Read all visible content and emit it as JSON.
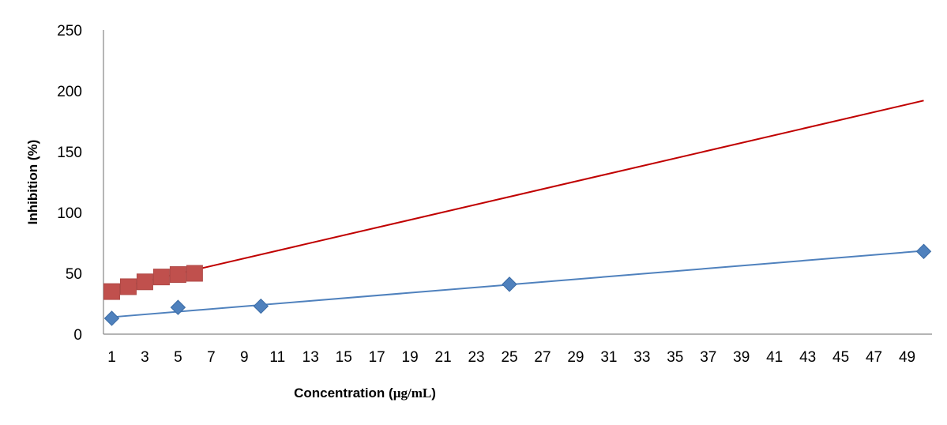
{
  "chart_data": {
    "type": "scatter",
    "title": "",
    "ylabel": "Inhibition (%)",
    "xlabel_prefix": "Concentration (",
    "xlabel_unit": "µg/mL",
    "xlabel_suffix": ")",
    "ylim": [
      0,
      250
    ],
    "yticks": [
      0,
      50,
      100,
      150,
      200,
      250
    ],
    "xlim": [
      0.5,
      50.5
    ],
    "xticks": [
      1,
      3,
      5,
      7,
      9,
      11,
      13,
      15,
      17,
      19,
      21,
      23,
      25,
      27,
      29,
      31,
      33,
      35,
      37,
      39,
      41,
      43,
      45,
      47,
      49
    ],
    "grid": false,
    "legend": "none",
    "series": [
      {
        "marker": "diamond",
        "color": "#4F81BD",
        "line_color": "#4F81BD",
        "points": [
          [
            1,
            13
          ],
          [
            5,
            22
          ],
          [
            10,
            23
          ],
          [
            25,
            41
          ],
          [
            50,
            68
          ]
        ],
        "trendline": [
          [
            1,
            14
          ],
          [
            50,
            68.5
          ]
        ]
      },
      {
        "marker": "square",
        "color": "#C0504D",
        "line_color": "#C00000",
        "points": [
          [
            1,
            35
          ],
          [
            2,
            39
          ],
          [
            3,
            43
          ],
          [
            4,
            47
          ],
          [
            5,
            49
          ],
          [
            6,
            50
          ]
        ],
        "trendline": [
          [
            1,
            37
          ],
          [
            50,
            192
          ]
        ]
      }
    ]
  }
}
